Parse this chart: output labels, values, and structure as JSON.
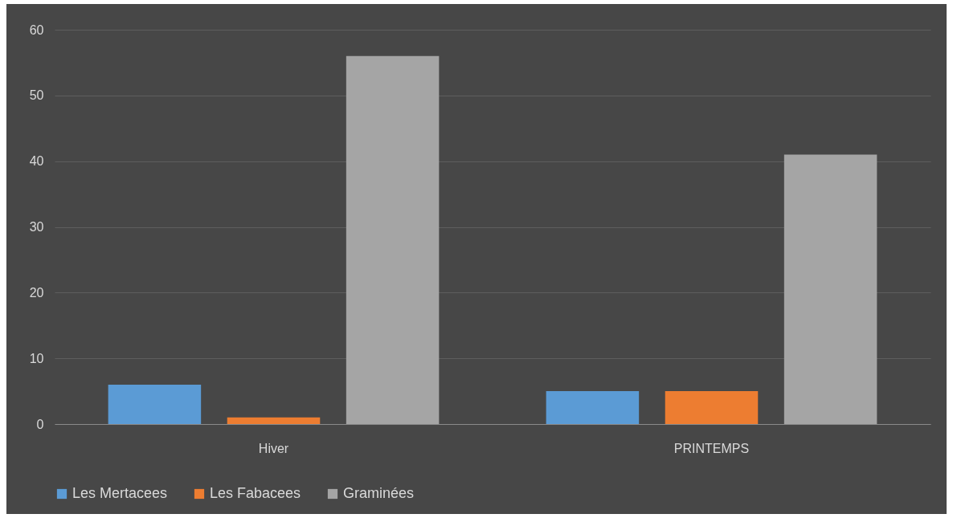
{
  "chart_data": {
    "type": "bar",
    "categories": [
      "Hiver",
      "PRINTEMPS"
    ],
    "series": [
      {
        "name": "Les Mertacees",
        "color": "#5b9bd5",
        "values": [
          6,
          5
        ]
      },
      {
        "name": "Les Fabacees",
        "color": "#ed7d31",
        "values": [
          1,
          5
        ]
      },
      {
        "name": "Graminées",
        "color": "#a5a5a5",
        "values": [
          56,
          41
        ]
      }
    ],
    "ylim": [
      0,
      60
    ],
    "yticks": [
      0,
      10,
      20,
      30,
      40,
      50,
      60
    ],
    "grid": "y",
    "legend": "bottom"
  }
}
